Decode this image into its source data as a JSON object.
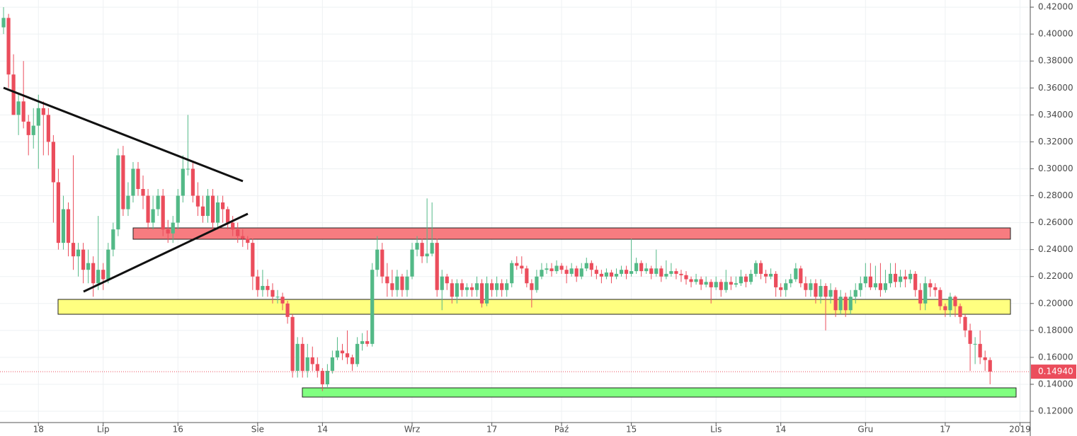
{
  "chart_data": {
    "type": "candlestick",
    "up_color": "#53b987",
    "down_color": "#eb4d5c",
    "ylim": [
      0.1116,
      0.4253
    ],
    "yticks": [
      {
        "value": 0.12,
        "label": "0.12000"
      },
      {
        "value": 0.14,
        "label": "0.14000"
      },
      {
        "value": 0.16,
        "label": "0.16000"
      },
      {
        "value": 0.18,
        "label": "0.18000"
      },
      {
        "value": 0.2,
        "label": "0.20000"
      },
      {
        "value": 0.22,
        "label": "0.22000"
      },
      {
        "value": 0.24,
        "label": "0.24000"
      },
      {
        "value": 0.26,
        "label": "0.26000"
      },
      {
        "value": 0.28,
        "label": "0.28000"
      },
      {
        "value": 0.3,
        "label": "0.30000"
      },
      {
        "value": 0.32,
        "label": "0.32000"
      },
      {
        "value": 0.34,
        "label": "0.34000"
      },
      {
        "value": 0.36,
        "label": "0.36000"
      },
      {
        "value": 0.38,
        "label": "0.38000"
      },
      {
        "value": 0.4,
        "label": "0.40000"
      },
      {
        "value": 0.42,
        "label": "0.42000"
      }
    ],
    "grid": true,
    "last_price": {
      "value": 0.1494,
      "label": "0.14940"
    },
    "categories": [
      null,
      null,
      null,
      null,
      null,
      null,
      null,
      "18",
      null,
      null,
      null,
      null,
      null,
      null,
      null,
      null,
      null,
      null,
      null,
      null,
      "Lip",
      null,
      null,
      null,
      null,
      null,
      null,
      null,
      null,
      null,
      null,
      null,
      null,
      null,
      null,
      "16",
      null,
      null,
      null,
      null,
      null,
      null,
      null,
      null,
      null,
      null,
      null,
      null,
      null,
      null,
      null,
      "Sie",
      null,
      null,
      null,
      null,
      null,
      null,
      null,
      null,
      null,
      null,
      null,
      null,
      "14",
      null,
      null,
      null,
      null,
      null,
      null,
      null,
      null,
      null,
      null,
      null,
      null,
      null,
      null,
      null,
      null,
      null,
      "Wrz",
      null,
      null,
      null,
      null,
      null,
      null,
      null,
      null,
      null,
      null,
      null,
      null,
      null,
      null,
      null,
      "17",
      null,
      null,
      null,
      null,
      null,
      null,
      null,
      null,
      null,
      null,
      null,
      null,
      null,
      "Paź",
      null,
      null,
      null,
      null,
      null,
      null,
      null,
      null,
      null,
      null,
      null,
      null,
      null,
      "15",
      null,
      null,
      null,
      null,
      null,
      null,
      null,
      null,
      null,
      null,
      null,
      null,
      null,
      null,
      null,
      null,
      "Lis",
      null,
      null,
      null,
      null,
      null,
      null,
      null,
      null,
      null,
      null,
      null,
      null,
      "14",
      null,
      null,
      null,
      null,
      null,
      null,
      null,
      null,
      null,
      null,
      null,
      null,
      null,
      null,
      null,
      null,
      "Gru",
      null,
      null,
      null,
      null,
      null,
      null,
      null,
      null,
      null,
      null,
      null,
      null,
      null,
      null,
      null,
      "17",
      null,
      null,
      null,
      null,
      null,
      null,
      null,
      null,
      null,
      null,
      null,
      null,
      null,
      null,
      "2019",
      null
    ],
    "ohlc": [
      [
        0.405,
        0.42,
        0.4,
        0.412
      ],
      [
        0.412,
        0.415,
        0.36,
        0.37
      ],
      [
        0.37,
        0.385,
        0.34,
        0.34
      ],
      [
        0.34,
        0.355,
        0.325,
        0.35
      ],
      [
        0.35,
        0.38,
        0.33,
        0.335
      ],
      [
        0.335,
        0.34,
        0.31,
        0.325
      ],
      [
        0.325,
        0.345,
        0.315,
        0.332
      ],
      [
        0.332,
        0.355,
        0.3,
        0.345
      ],
      [
        0.345,
        0.35,
        0.31,
        0.34
      ],
      [
        0.34,
        0.345,
        0.31,
        0.32
      ],
      [
        0.32,
        0.325,
        0.26,
        0.29
      ],
      [
        0.29,
        0.3,
        0.24,
        0.245
      ],
      [
        0.245,
        0.28,
        0.24,
        0.27
      ],
      [
        0.27,
        0.275,
        0.235,
        0.245
      ],
      [
        0.245,
        0.31,
        0.225,
        0.235
      ],
      [
        0.235,
        0.245,
        0.22,
        0.24
      ],
      [
        0.24,
        0.245,
        0.215,
        0.225
      ],
      [
        0.225,
        0.24,
        0.215,
        0.23
      ],
      [
        0.23,
        0.235,
        0.205,
        0.215
      ],
      [
        0.215,
        0.265,
        0.21,
        0.225
      ],
      [
        0.225,
        0.23,
        0.21,
        0.218
      ],
      [
        0.218,
        0.245,
        0.215,
        0.24
      ],
      [
        0.24,
        0.26,
        0.235,
        0.255
      ],
      [
        0.255,
        0.315,
        0.25,
        0.31
      ],
      [
        0.31,
        0.317,
        0.265,
        0.27
      ],
      [
        0.27,
        0.29,
        0.265,
        0.28
      ],
      [
        0.28,
        0.305,
        0.275,
        0.3
      ],
      [
        0.3,
        0.305,
        0.28,
        0.285
      ],
      [
        0.285,
        0.295,
        0.27,
        0.28
      ],
      [
        0.28,
        0.285,
        0.255,
        0.26
      ],
      [
        0.26,
        0.28,
        0.255,
        0.27
      ],
      [
        0.27,
        0.285,
        0.265,
        0.28
      ],
      [
        0.28,
        0.285,
        0.25,
        0.255
      ],
      [
        0.255,
        0.262,
        0.245,
        0.252
      ],
      [
        0.252,
        0.265,
        0.245,
        0.26
      ],
      [
        0.26,
        0.285,
        0.255,
        0.28
      ],
      [
        0.28,
        0.31,
        0.275,
        0.3
      ],
      [
        0.3,
        0.34,
        0.295,
        0.3
      ],
      [
        0.3,
        0.305,
        0.275,
        0.28
      ],
      [
        0.28,
        0.29,
        0.265,
        0.272
      ],
      [
        0.272,
        0.28,
        0.26,
        0.265
      ],
      [
        0.265,
        0.285,
        0.26,
        0.28
      ],
      [
        0.28,
        0.285,
        0.255,
        0.26
      ],
      [
        0.26,
        0.28,
        0.255,
        0.275
      ],
      [
        0.275,
        0.28,
        0.26,
        0.27
      ],
      [
        0.27,
        0.272,
        0.255,
        0.26
      ],
      [
        0.26,
        0.265,
        0.25,
        0.255
      ],
      [
        0.255,
        0.26,
        0.245,
        0.25
      ],
      [
        0.25,
        0.255,
        0.242,
        0.248
      ],
      [
        0.248,
        0.25,
        0.24,
        0.245
      ],
      [
        0.245,
        0.248,
        0.21,
        0.22
      ],
      [
        0.22,
        0.225,
        0.205,
        0.21
      ],
      [
        0.21,
        0.225,
        0.205,
        0.213
      ],
      [
        0.213,
        0.218,
        0.205,
        0.21
      ],
      [
        0.21,
        0.215,
        0.2,
        0.205
      ],
      [
        0.205,
        0.21,
        0.2,
        0.205
      ],
      [
        0.205,
        0.208,
        0.195,
        0.2
      ],
      [
        0.2,
        0.202,
        0.185,
        0.19
      ],
      [
        0.19,
        0.192,
        0.145,
        0.15
      ],
      [
        0.15,
        0.175,
        0.145,
        0.17
      ],
      [
        0.17,
        0.175,
        0.145,
        0.15
      ],
      [
        0.15,
        0.17,
        0.145,
        0.16
      ],
      [
        0.16,
        0.168,
        0.15,
        0.155
      ],
      [
        0.155,
        0.16,
        0.145,
        0.15
      ],
      [
        0.15,
        0.152,
        0.135,
        0.14
      ],
      [
        0.14,
        0.155,
        0.138,
        0.15
      ],
      [
        0.15,
        0.165,
        0.148,
        0.16
      ],
      [
        0.16,
        0.175,
        0.158,
        0.165
      ],
      [
        0.165,
        0.17,
        0.158,
        0.163
      ],
      [
        0.163,
        0.18,
        0.155,
        0.16
      ],
      [
        0.16,
        0.162,
        0.15,
        0.155
      ],
      [
        0.155,
        0.175,
        0.153,
        0.17
      ],
      [
        0.17,
        0.178,
        0.165,
        0.172
      ],
      [
        0.172,
        0.18,
        0.168,
        0.17
      ],
      [
        0.17,
        0.23,
        0.168,
        0.225
      ],
      [
        0.225,
        0.25,
        0.22,
        0.24
      ],
      [
        0.24,
        0.245,
        0.215,
        0.22
      ],
      [
        0.22,
        0.23,
        0.205,
        0.215
      ],
      [
        0.215,
        0.225,
        0.205,
        0.21
      ],
      [
        0.21,
        0.225,
        0.205,
        0.22
      ],
      [
        0.22,
        0.222,
        0.205,
        0.21
      ],
      [
        0.21,
        0.225,
        0.205,
        0.22
      ],
      [
        0.22,
        0.245,
        0.218,
        0.24
      ],
      [
        0.24,
        0.25,
        0.235,
        0.245
      ],
      [
        0.245,
        0.248,
        0.23,
        0.235
      ],
      [
        0.235,
        0.278,
        0.23,
        0.237
      ],
      [
        0.237,
        0.275,
        0.235,
        0.245
      ],
      [
        0.245,
        0.248,
        0.205,
        0.21
      ],
      [
        0.21,
        0.225,
        0.195,
        0.22
      ],
      [
        0.22,
        0.222,
        0.21,
        0.215
      ],
      [
        0.215,
        0.218,
        0.2,
        0.205
      ],
      [
        0.205,
        0.218,
        0.2,
        0.215
      ],
      [
        0.215,
        0.218,
        0.205,
        0.21
      ],
      [
        0.21,
        0.215,
        0.205,
        0.212
      ],
      [
        0.212,
        0.215,
        0.205,
        0.21
      ],
      [
        0.21,
        0.22,
        0.205,
        0.215
      ],
      [
        0.215,
        0.218,
        0.197,
        0.2
      ],
      [
        0.2,
        0.22,
        0.198,
        0.215
      ],
      [
        0.215,
        0.218,
        0.205,
        0.21
      ],
      [
        0.21,
        0.22,
        0.205,
        0.215
      ],
      [
        0.215,
        0.218,
        0.205,
        0.21
      ],
      [
        0.21,
        0.218,
        0.205,
        0.215
      ],
      [
        0.215,
        0.232,
        0.212,
        0.23
      ],
      [
        0.23,
        0.235,
        0.225,
        0.228
      ],
      [
        0.228,
        0.235,
        0.222,
        0.226
      ],
      [
        0.226,
        0.228,
        0.212,
        0.215
      ],
      [
        0.215,
        0.218,
        0.197,
        0.21
      ],
      [
        0.21,
        0.225,
        0.208,
        0.22
      ],
      [
        0.22,
        0.23,
        0.218,
        0.225
      ],
      [
        0.225,
        0.23,
        0.222,
        0.226
      ],
      [
        0.226,
        0.23,
        0.22,
        0.224
      ],
      [
        0.224,
        0.232,
        0.222,
        0.228
      ],
      [
        0.228,
        0.23,
        0.222,
        0.225
      ],
      [
        0.225,
        0.228,
        0.215,
        0.222
      ],
      [
        0.222,
        0.23,
        0.22,
        0.226
      ],
      [
        0.226,
        0.228,
        0.216,
        0.22
      ],
      [
        0.22,
        0.23,
        0.218,
        0.226
      ],
      [
        0.226,
        0.234,
        0.224,
        0.23
      ],
      [
        0.23,
        0.232,
        0.22,
        0.225
      ],
      [
        0.225,
        0.228,
        0.218,
        0.222
      ],
      [
        0.222,
        0.225,
        0.215,
        0.22
      ],
      [
        0.22,
        0.226,
        0.218,
        0.223
      ],
      [
        0.223,
        0.225,
        0.215,
        0.22
      ],
      [
        0.22,
        0.226,
        0.218,
        0.222
      ],
      [
        0.222,
        0.228,
        0.22,
        0.225
      ],
      [
        0.225,
        0.228,
        0.218,
        0.222
      ],
      [
        0.222,
        0.248,
        0.22,
        0.224
      ],
      [
        0.224,
        0.234,
        0.222,
        0.23
      ],
      [
        0.23,
        0.232,
        0.22,
        0.224
      ],
      [
        0.224,
        0.23,
        0.222,
        0.226
      ],
      [
        0.226,
        0.228,
        0.218,
        0.222
      ],
      [
        0.222,
        0.24,
        0.22,
        0.226
      ],
      [
        0.226,
        0.228,
        0.216,
        0.22
      ],
      [
        0.22,
        0.232,
        0.218,
        0.222
      ],
      [
        0.222,
        0.23,
        0.22,
        0.224
      ],
      [
        0.224,
        0.226,
        0.218,
        0.222
      ],
      [
        0.222,
        0.225,
        0.216,
        0.221
      ],
      [
        0.221,
        0.224,
        0.214,
        0.218
      ],
      [
        0.218,
        0.22,
        0.212,
        0.216
      ],
      [
        0.216,
        0.222,
        0.214,
        0.218
      ],
      [
        0.218,
        0.22,
        0.21,
        0.214
      ],
      [
        0.214,
        0.22,
        0.212,
        0.216
      ],
      [
        0.216,
        0.218,
        0.2,
        0.212
      ],
      [
        0.212,
        0.22,
        0.21,
        0.216
      ],
      [
        0.216,
        0.218,
        0.205,
        0.21
      ],
      [
        0.21,
        0.225,
        0.208,
        0.216
      ],
      [
        0.216,
        0.22,
        0.21,
        0.214
      ],
      [
        0.214,
        0.22,
        0.212,
        0.215
      ],
      [
        0.215,
        0.225,
        0.213,
        0.22
      ],
      [
        0.22,
        0.222,
        0.212,
        0.216
      ],
      [
        0.216,
        0.225,
        0.214,
        0.222
      ],
      [
        0.222,
        0.232,
        0.22,
        0.23
      ],
      [
        0.23,
        0.232,
        0.218,
        0.222
      ],
      [
        0.222,
        0.225,
        0.215,
        0.22
      ],
      [
        0.22,
        0.226,
        0.218,
        0.222
      ],
      [
        0.222,
        0.224,
        0.205,
        0.212
      ],
      [
        0.212,
        0.215,
        0.205,
        0.21
      ],
      [
        0.21,
        0.218,
        0.205,
        0.215
      ],
      [
        0.215,
        0.222,
        0.212,
        0.218
      ],
      [
        0.218,
        0.23,
        0.216,
        0.226
      ],
      [
        0.226,
        0.228,
        0.212,
        0.215
      ],
      [
        0.215,
        0.22,
        0.205,
        0.21
      ],
      [
        0.21,
        0.218,
        0.205,
        0.215
      ],
      [
        0.215,
        0.218,
        0.2,
        0.205
      ],
      [
        0.205,
        0.218,
        0.2,
        0.213
      ],
      [
        0.213,
        0.215,
        0.18,
        0.205
      ],
      [
        0.205,
        0.215,
        0.2,
        0.21
      ],
      [
        0.21,
        0.212,
        0.19,
        0.195
      ],
      [
        0.195,
        0.21,
        0.192,
        0.205
      ],
      [
        0.205,
        0.208,
        0.19,
        0.195
      ],
      [
        0.195,
        0.21,
        0.192,
        0.205
      ],
      [
        0.205,
        0.215,
        0.2,
        0.21
      ],
      [
        0.21,
        0.22,
        0.205,
        0.215
      ],
      [
        0.215,
        0.23,
        0.212,
        0.22
      ],
      [
        0.22,
        0.23,
        0.21,
        0.212
      ],
      [
        0.212,
        0.228,
        0.21,
        0.215
      ],
      [
        0.215,
        0.23,
        0.205,
        0.21
      ],
      [
        0.21,
        0.225,
        0.208,
        0.215
      ],
      [
        0.215,
        0.23,
        0.212,
        0.222
      ],
      [
        0.222,
        0.23,
        0.212,
        0.216
      ],
      [
        0.216,
        0.225,
        0.212,
        0.22
      ],
      [
        0.22,
        0.225,
        0.212,
        0.218
      ],
      [
        0.218,
        0.225,
        0.215,
        0.222
      ],
      [
        0.222,
        0.224,
        0.205,
        0.21
      ],
      [
        0.21,
        0.215,
        0.195,
        0.2
      ],
      [
        0.2,
        0.22,
        0.195,
        0.215
      ],
      [
        0.215,
        0.218,
        0.205,
        0.212
      ],
      [
        0.212,
        0.215,
        0.205,
        0.21
      ],
      [
        0.21,
        0.212,
        0.195,
        0.198
      ],
      [
        0.198,
        0.2,
        0.19,
        0.195
      ],
      [
        0.195,
        0.208,
        0.19,
        0.205
      ],
      [
        0.205,
        0.206,
        0.19,
        0.198
      ],
      [
        0.198,
        0.2,
        0.185,
        0.19
      ],
      [
        0.19,
        0.192,
        0.175,
        0.18
      ],
      [
        0.18,
        0.185,
        0.15,
        0.17
      ],
      [
        0.17,
        0.175,
        0.155,
        0.17
      ],
      [
        0.17,
        0.18,
        0.155,
        0.16
      ],
      [
        0.16,
        0.165,
        0.15,
        0.158
      ],
      [
        0.158,
        0.16,
        0.14,
        0.1494
      ],
      null,
      null,
      null,
      null,
      null,
      null,
      null
    ]
  }
}
